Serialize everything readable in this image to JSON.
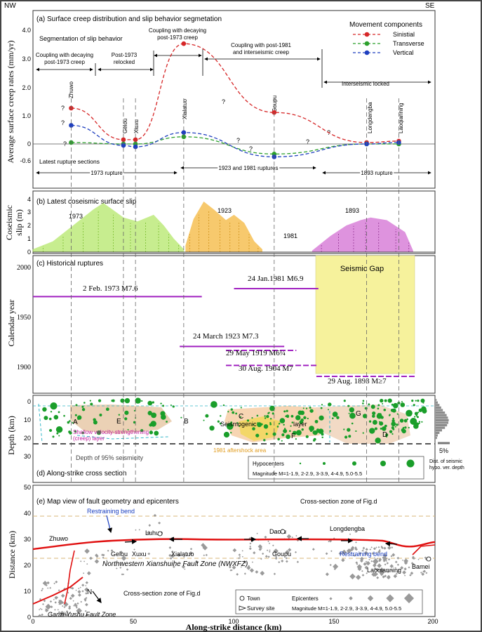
{
  "header": {
    "left": "NW",
    "right": "SE"
  },
  "colors": {
    "sinistral": "#d62728",
    "transverse": "#2ca02c",
    "vertical": "#1f3fbf",
    "slip1973": "#b5e86a",
    "slip1923": "#f5b83d",
    "slip1893": "#d36fd3",
    "rupture": "#a020c0",
    "gap": "#f6f29c",
    "quake": "#1a9e2a",
    "epicenter": "#9a9a9a",
    "fault": "#e01010"
  },
  "panel_a": {
    "title": "(a) Surface creep distribution and slip behavior segmetation",
    "ylabel": "Average surface creep rates (mm/yr)",
    "yticks": [
      "4.0",
      "3.0",
      "2.0",
      "1.0",
      "0",
      "-0.6"
    ],
    "legend_title": "Movement components",
    "legend": [
      "Sinistial",
      "Transverse",
      "Vertical"
    ],
    "segmentation_label": "Segmentation of slip behavior",
    "segments": [
      {
        "text1": "Coupling with decaying",
        "text2": "post-1973 creep"
      },
      {
        "text1": "Post-1973",
        "text2": "relocked"
      },
      {
        "text1": "Coupling with decaying",
        "text2": "post-1973 creep"
      },
      {
        "text1": "Coupling with post-1981",
        "text2": "and interseismic creep"
      },
      {
        "text1": "Interseismic locked",
        "text2": ""
      }
    ],
    "towns": [
      "Zhuwo",
      "Gelou",
      "Xiuxu",
      "Xialatuo",
      "Goupu",
      "Longdengba",
      "Laoqianning"
    ],
    "rupture_caption": "Latest rupture sections",
    "rupture_spans": [
      "1973 rupture",
      "1923 and 1981 ruptures",
      "1893 rupture"
    ],
    "question": "?"
  },
  "panel_b": {
    "title": "(b) Latest coseismic surface slip",
    "ylabel1": "Coseismic",
    "ylabel2": "slip (m)",
    "yticks": [
      "4",
      "3",
      "2",
      "1",
      "0"
    ],
    "labels": [
      "1973",
      "1923",
      "1981",
      "1893"
    ]
  },
  "panel_c": {
    "title": "(c) Historical ruptures",
    "ylabel": "Calendar year",
    "yticks": [
      "2000",
      "1950",
      "1900"
    ],
    "gap_label": "Seismic Gap",
    "ruptures": [
      "2 Feb. 1973 M7.6",
      "24 Jan.1981 M6.9",
      "24 March 1923 M7.3",
      "29 May 1919 M6¼",
      "30 Aug. 1904 M7",
      "29 Aug. 1893 M≥7"
    ]
  },
  "panel_d": {
    "title": "(d) Along-strike cross section",
    "ylabel": "Depth (km)",
    "yticks": [
      "0",
      "10",
      "20",
      "30"
    ],
    "zones": [
      "A",
      "E",
      "C",
      "F",
      "G",
      "D",
      "B"
    ],
    "label_seismogenic": "Seismogenic",
    "label_layer": "layer",
    "label_shallow1": "Shallow velocity-strengthening",
    "label_shallow2": "(creep) layer",
    "label_depth95": "Depth of 95% seismicity",
    "label_aftershock": "1981 aftershock area",
    "legend_title": "Hypocenters",
    "legend_mag": "Magnitude M=1-1.9, 2-2.9, 3-3.9, 4-4.9, 5.0-5.5",
    "hist_pct": "5%",
    "hist_caption1": "Dist. of seismic",
    "hist_caption2": "hypo. ver. depth"
  },
  "panel_e": {
    "title": "(e) Map view of fault geometry and epicenters",
    "ylabel": "Distance (km)",
    "yticks": [
      "50",
      "40",
      "30",
      "20",
      "10",
      "0"
    ],
    "towns": [
      "Zhuwo",
      "Gelou",
      "Xuxu",
      "Luhuo",
      "Xialatuo",
      "Daofu",
      "Goupu",
      "Longdengba",
      "Laoqianning",
      "Bamei"
    ],
    "restraining_bend": "Restraining bend",
    "crosssection_label": "Cross-section zone of Fig.d",
    "fault_zone": "Northwestern Xianshuihe Fault Zone (NWXFZ)",
    "ganzi": "Ganzi-Yushu Fault Zone",
    "north": "N",
    "legend_town": "Town",
    "legend_survey": "Survey site",
    "legend_epi": "Epicenters",
    "legend_mag": "Magnitude M=1-1.9, 2-2.9, 3-3.9, 4-4.9, 5.0-5.5"
  },
  "xaxis": {
    "label": "Along-strike distance (km)",
    "ticks": [
      "0",
      "50",
      "100",
      "150",
      "200"
    ]
  },
  "chart_data": [
    {
      "type": "line",
      "title": "(a) Surface creep distribution and slip behavior segmetation",
      "xlabel": "Along-strike distance (km)",
      "ylabel": "Average surface creep rates (mm/yr)",
      "xlim": [
        0,
        200
      ],
      "ylim": [
        -0.6,
        4.0
      ],
      "series": [
        {
          "name": "Sinistial",
          "x": [
            19,
            45,
            51,
            75,
            120,
            166,
            182
          ],
          "y": [
            1.25,
            0.15,
            0.15,
            3.5,
            1.1,
            0.05,
            0.1
          ]
        },
        {
          "name": "Transverse",
          "x": [
            19,
            45,
            51,
            75,
            120,
            166,
            182
          ],
          "y": [
            0.05,
            0.0,
            0.0,
            0.25,
            -0.35,
            0.0,
            0.0
          ]
        },
        {
          "name": "Vertical",
          "x": [
            19,
            45,
            51,
            75,
            120,
            166,
            182
          ],
          "y": [
            0.65,
            -0.05,
            -0.1,
            0.4,
            -0.45,
            0.0,
            0.05
          ]
        }
      ]
    },
    {
      "type": "area",
      "title": "(b) Latest coseismic surface slip",
      "ylabel": "slip (m)",
      "ylim": [
        0,
        4
      ],
      "series": [
        {
          "name": "1973",
          "x": [
            0,
            10,
            20,
            30,
            35,
            45,
            52,
            60,
            65,
            70,
            75
          ],
          "y": [
            0.2,
            0.8,
            2.0,
            3.2,
            3.7,
            2.6,
            2.3,
            2.8,
            2.0,
            1.0,
            0.2
          ]
        },
        {
          "name": "1923",
          "x": [
            76,
            80,
            85,
            90,
            96,
            100,
            105,
            110,
            114
          ],
          "y": [
            0.5,
            2.5,
            3.8,
            3.2,
            2.4,
            2.8,
            2.2,
            0.8,
            0.2
          ]
        },
        {
          "name": "1893",
          "x": [
            139,
            148,
            156,
            163,
            168,
            176,
            185,
            189
          ],
          "y": [
            0.1,
            1.2,
            2.0,
            2.4,
            2.6,
            2.4,
            1.5,
            0.1
          ]
        }
      ]
    },
    {
      "type": "table",
      "title": "(c) Historical ruptures",
      "columns": [
        "date",
        "magnitude",
        "x_start_km",
        "x_end_km",
        "year"
      ],
      "rows": [
        [
          "2 Feb. 1973",
          "M7.6",
          0,
          84,
          1973
        ],
        [
          "24 Jan. 1981",
          "M6.9",
          100,
          142,
          1981
        ],
        [
          "24 March 1923",
          "M7.3",
          73,
          125,
          1923
        ],
        [
          "29 May 1919",
          "M6¼",
          96,
          131,
          1919
        ],
        [
          "30 Aug. 1904",
          "M7",
          96,
          142,
          1904
        ],
        [
          "29 Aug. 1893",
          "M≥7",
          141,
          190,
          1893
        ]
      ]
    }
  ]
}
